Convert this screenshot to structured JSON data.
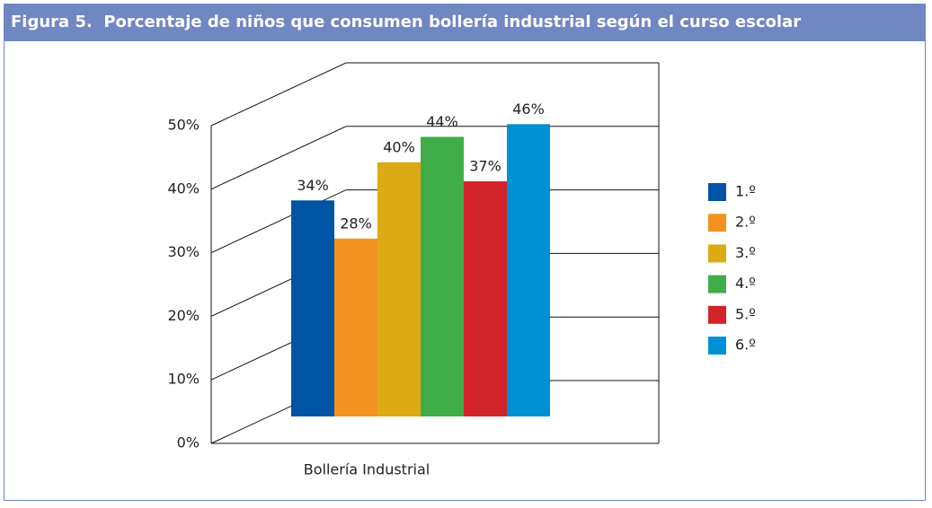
{
  "chart_data": {
    "type": "bar",
    "title": "Figura 5.  Porcentaje de niños que consumen bollería industrial según el curso escolar",
    "categories": [
      "Bollería Industrial"
    ],
    "series": [
      {
        "name": "1.º",
        "color": "#0054a6",
        "values": [
          34
        ],
        "value_labels": [
          "34%"
        ]
      },
      {
        "name": "2.º",
        "color": "#f39221",
        "values": [
          28
        ],
        "value_labels": [
          "28%"
        ]
      },
      {
        "name": "3.º",
        "color": "#dcaa12",
        "values": [
          40
        ],
        "value_labels": [
          "40%"
        ]
      },
      {
        "name": "4.º",
        "color": "#41ad49",
        "values": [
          44
        ],
        "value_labels": [
          "44%"
        ]
      },
      {
        "name": "5.º",
        "color": "#d2232a",
        "values": [
          37
        ],
        "value_labels": [
          "37%"
        ]
      },
      {
        "name": "6.º",
        "color": "#0090d6",
        "values": [
          46
        ],
        "value_labels": [
          "46%"
        ]
      }
    ],
    "ylim": [
      0,
      50
    ],
    "yticks": [
      {
        "value": 0,
        "label": "0%"
      },
      {
        "value": 10,
        "label": "10%"
      },
      {
        "value": 20,
        "label": "20%"
      },
      {
        "value": 30,
        "label": "30%"
      },
      {
        "value": 40,
        "label": "40%"
      },
      {
        "value": 50,
        "label": "50%"
      }
    ],
    "grid": true
  }
}
